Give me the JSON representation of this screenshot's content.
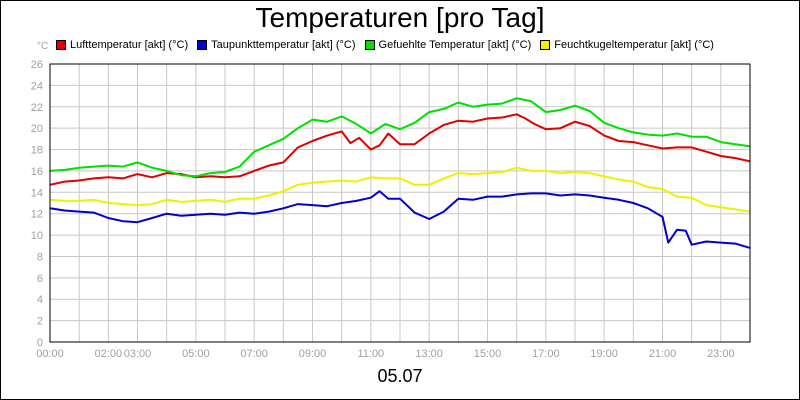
{
  "chart_data": {
    "type": "line",
    "title": "Temperaturen [pro Tag]",
    "xlabel": "05.07",
    "ylabel": "°C",
    "ylim": [
      0,
      26
    ],
    "xlim": [
      0,
      24
    ],
    "grid": true,
    "legend_position": "top",
    "y_ticks": [
      "0",
      "2",
      "4",
      "6",
      "8",
      "10",
      "12",
      "14",
      "16",
      "18",
      "20",
      "22",
      "24",
      "26"
    ],
    "x_ticks": [
      {
        "x": 0,
        "label": "00:00"
      },
      {
        "x": 2,
        "label": "02:00"
      },
      {
        "x": 3,
        "label": "03:00"
      },
      {
        "x": 5,
        "label": "05:00"
      },
      {
        "x": 7,
        "label": "07:00"
      },
      {
        "x": 9,
        "label": "09:00"
      },
      {
        "x": 11,
        "label": "11:00"
      },
      {
        "x": 13,
        "label": "13:00"
      },
      {
        "x": 15,
        "label": "15:00"
      },
      {
        "x": 17,
        "label": "17:00"
      },
      {
        "x": 19,
        "label": "19:00"
      },
      {
        "x": 21,
        "label": "21:00"
      },
      {
        "x": 23,
        "label": "23:00"
      }
    ],
    "series": [
      {
        "name": "Lufttemperatur [akt] (°C)",
        "color": "#e00000",
        "points": [
          [
            0,
            14.7
          ],
          [
            0.5,
            15
          ],
          [
            1,
            15.1
          ],
          [
            1.5,
            15.3
          ],
          [
            2,
            15.4
          ],
          [
            2.5,
            15.3
          ],
          [
            3,
            15.7
          ],
          [
            3.5,
            15.4
          ],
          [
            4,
            15.8
          ],
          [
            4.5,
            15.7
          ],
          [
            5,
            15.4
          ],
          [
            5.5,
            15.5
          ],
          [
            6,
            15.4
          ],
          [
            6.5,
            15.5
          ],
          [
            7,
            16
          ],
          [
            7.5,
            16.5
          ],
          [
            8,
            16.8
          ],
          [
            8.5,
            18.2
          ],
          [
            9,
            18.8
          ],
          [
            9.5,
            19.3
          ],
          [
            10,
            19.7
          ],
          [
            10.3,
            18.6
          ],
          [
            10.6,
            19.1
          ],
          [
            11,
            18
          ],
          [
            11.3,
            18.4
          ],
          [
            11.6,
            19.5
          ],
          [
            12,
            18.5
          ],
          [
            12.5,
            18.5
          ],
          [
            13,
            19.5
          ],
          [
            13.5,
            20.3
          ],
          [
            14,
            20.7
          ],
          [
            14.5,
            20.6
          ],
          [
            15,
            20.9
          ],
          [
            15.5,
            21
          ],
          [
            16,
            21.3
          ],
          [
            16.3,
            20.9
          ],
          [
            16.6,
            20.4
          ],
          [
            17,
            19.9
          ],
          [
            17.5,
            20
          ],
          [
            18,
            20.6
          ],
          [
            18.5,
            20.2
          ],
          [
            19,
            19.3
          ],
          [
            19.5,
            18.8
          ],
          [
            20,
            18.7
          ],
          [
            20.5,
            18.4
          ],
          [
            21,
            18.1
          ],
          [
            21.5,
            18.2
          ],
          [
            22,
            18.2
          ],
          [
            22.5,
            17.8
          ],
          [
            23,
            17.4
          ],
          [
            23.5,
            17.2
          ],
          [
            24,
            16.9
          ]
        ]
      },
      {
        "name": "Taupunkttemperatur [akt] (°C)",
        "color": "#0000d0",
        "points": [
          [
            0,
            12.5
          ],
          [
            0.5,
            12.3
          ],
          [
            1,
            12.2
          ],
          [
            1.5,
            12.1
          ],
          [
            2,
            11.6
          ],
          [
            2.5,
            11.3
          ],
          [
            3,
            11.2
          ],
          [
            3.5,
            11.6
          ],
          [
            4,
            12
          ],
          [
            4.5,
            11.8
          ],
          [
            5,
            11.9
          ],
          [
            5.5,
            12
          ],
          [
            6,
            11.9
          ],
          [
            6.5,
            12.1
          ],
          [
            7,
            12
          ],
          [
            7.5,
            12.2
          ],
          [
            8,
            12.5
          ],
          [
            8.5,
            12.9
          ],
          [
            9,
            12.8
          ],
          [
            9.5,
            12.7
          ],
          [
            10,
            13
          ],
          [
            10.5,
            13.2
          ],
          [
            11,
            13.5
          ],
          [
            11.3,
            14.1
          ],
          [
            11.6,
            13.4
          ],
          [
            12,
            13.4
          ],
          [
            12.5,
            12.1
          ],
          [
            13,
            11.5
          ],
          [
            13.5,
            12.2
          ],
          [
            14,
            13.4
          ],
          [
            14.5,
            13.3
          ],
          [
            15,
            13.6
          ],
          [
            15.5,
            13.6
          ],
          [
            16,
            13.8
          ],
          [
            16.5,
            13.9
          ],
          [
            17,
            13.9
          ],
          [
            17.5,
            13.7
          ],
          [
            18,
            13.8
          ],
          [
            18.5,
            13.7
          ],
          [
            19,
            13.5
          ],
          [
            19.5,
            13.3
          ],
          [
            20,
            13
          ],
          [
            20.5,
            12.5
          ],
          [
            21,
            11.7
          ],
          [
            21.2,
            9.3
          ],
          [
            21.5,
            10.5
          ],
          [
            21.8,
            10.4
          ],
          [
            22,
            9.1
          ],
          [
            22.5,
            9.4
          ],
          [
            23,
            9.3
          ],
          [
            23.5,
            9.2
          ],
          [
            24,
            8.8
          ]
        ]
      },
      {
        "name": "Gefuehlte Temperatur [akt] (°C)",
        "color": "#00e000",
        "points": [
          [
            0,
            16
          ],
          [
            0.5,
            16.1
          ],
          [
            1,
            16.3
          ],
          [
            1.5,
            16.4
          ],
          [
            2,
            16.5
          ],
          [
            2.5,
            16.4
          ],
          [
            3,
            16.8
          ],
          [
            3.5,
            16.3
          ],
          [
            4,
            16
          ],
          [
            4.5,
            15.6
          ],
          [
            5,
            15.5
          ],
          [
            5.5,
            15.8
          ],
          [
            6,
            15.9
          ],
          [
            6.5,
            16.4
          ],
          [
            7,
            17.8
          ],
          [
            7.5,
            18.4
          ],
          [
            8,
            19
          ],
          [
            8.5,
            20
          ],
          [
            9,
            20.8
          ],
          [
            9.5,
            20.6
          ],
          [
            10,
            21.1
          ],
          [
            10.5,
            20.4
          ],
          [
            11,
            19.5
          ],
          [
            11.5,
            20.4
          ],
          [
            12,
            19.9
          ],
          [
            12.5,
            20.5
          ],
          [
            13,
            21.5
          ],
          [
            13.5,
            21.8
          ],
          [
            14,
            22.4
          ],
          [
            14.5,
            22
          ],
          [
            15,
            22.2
          ],
          [
            15.5,
            22.3
          ],
          [
            16,
            22.8
          ],
          [
            16.5,
            22.5
          ],
          [
            17,
            21.5
          ],
          [
            17.5,
            21.7
          ],
          [
            18,
            22.1
          ],
          [
            18.5,
            21.6
          ],
          [
            19,
            20.5
          ],
          [
            19.5,
            20
          ],
          [
            20,
            19.6
          ],
          [
            20.5,
            19.4
          ],
          [
            21,
            19.3
          ],
          [
            21.5,
            19.5
          ],
          [
            22,
            19.2
          ],
          [
            22.5,
            19.2
          ],
          [
            23,
            18.7
          ],
          [
            23.5,
            18.5
          ],
          [
            24,
            18.3
          ]
        ]
      },
      {
        "name": "Feuchtkugeltemperatur [akt] (°C)",
        "color": "#f0f000",
        "points": [
          [
            0,
            13.3
          ],
          [
            0.5,
            13.2
          ],
          [
            1,
            13.2
          ],
          [
            1.5,
            13.3
          ],
          [
            2,
            13
          ],
          [
            2.5,
            12.9
          ],
          [
            3,
            12.8
          ],
          [
            3.5,
            12.9
          ],
          [
            4,
            13.3
          ],
          [
            4.5,
            13.1
          ],
          [
            5,
            13.2
          ],
          [
            5.5,
            13.3
          ],
          [
            6,
            13.1
          ],
          [
            6.5,
            13.4
          ],
          [
            7,
            13.4
          ],
          [
            7.5,
            13.7
          ],
          [
            8,
            14.1
          ],
          [
            8.5,
            14.7
          ],
          [
            9,
            14.9
          ],
          [
            9.5,
            15
          ],
          [
            10,
            15.1
          ],
          [
            10.5,
            15
          ],
          [
            11,
            15.4
          ],
          [
            11.5,
            15.3
          ],
          [
            12,
            15.3
          ],
          [
            12.5,
            14.7
          ],
          [
            13,
            14.7
          ],
          [
            13.5,
            15.3
          ],
          [
            14,
            15.8
          ],
          [
            14.5,
            15.7
          ],
          [
            15,
            15.8
          ],
          [
            15.5,
            15.9
          ],
          [
            16,
            16.3
          ],
          [
            16.5,
            16
          ],
          [
            17,
            16
          ],
          [
            17.5,
            15.8
          ],
          [
            18,
            15.9
          ],
          [
            18.5,
            15.8
          ],
          [
            19,
            15.5
          ],
          [
            19.5,
            15.2
          ],
          [
            20,
            15
          ],
          [
            20.5,
            14.5
          ],
          [
            21,
            14.3
          ],
          [
            21.5,
            13.6
          ],
          [
            22,
            13.5
          ],
          [
            22.5,
            12.8
          ],
          [
            23,
            12.6
          ],
          [
            23.5,
            12.4
          ],
          [
            24,
            12.2
          ]
        ]
      }
    ]
  }
}
